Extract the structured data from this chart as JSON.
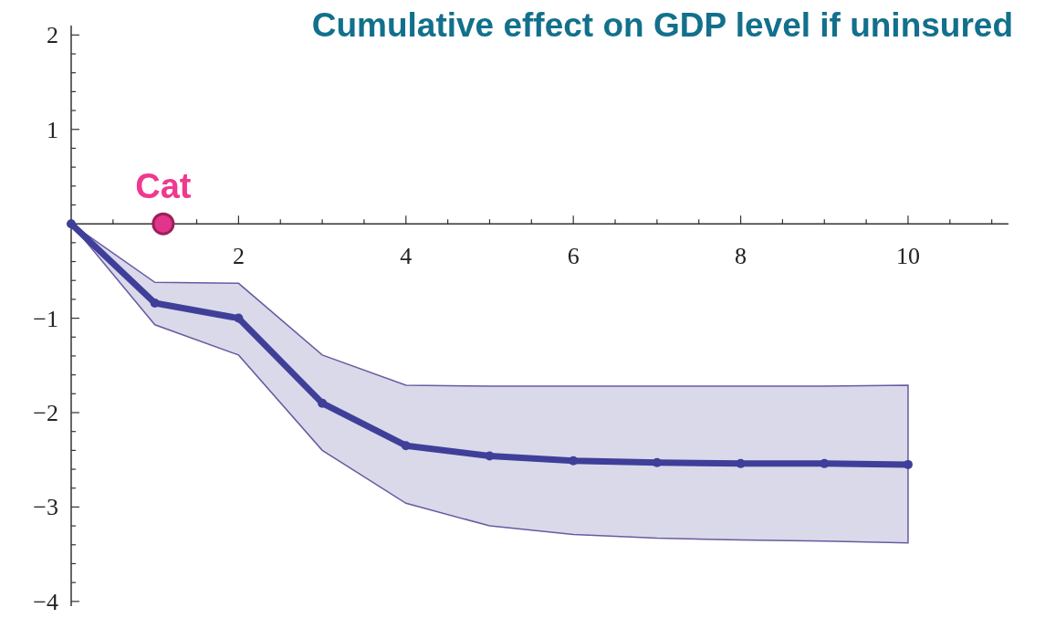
{
  "chart_data": {
    "type": "line",
    "title": "Cumulative effect on GDP level if uninsured",
    "xlim": [
      0,
      11.2
    ],
    "ylim": [
      -4.05,
      2.1
    ],
    "xticks": [
      {
        "value": 0,
        "label": null
      },
      {
        "value": 0.5,
        "label": null
      },
      {
        "value": 1,
        "label": null
      },
      {
        "value": 1.5,
        "label": null
      },
      {
        "value": 2,
        "label": "2"
      },
      {
        "value": 2.5,
        "label": null
      },
      {
        "value": 3,
        "label": null
      },
      {
        "value": 3.5,
        "label": null
      },
      {
        "value": 4,
        "label": "4"
      },
      {
        "value": 4.5,
        "label": null
      },
      {
        "value": 5,
        "label": null
      },
      {
        "value": 5.5,
        "label": null
      },
      {
        "value": 6,
        "label": "6"
      },
      {
        "value": 6.5,
        "label": null
      },
      {
        "value": 7,
        "label": null
      },
      {
        "value": 7.5,
        "label": null
      },
      {
        "value": 8,
        "label": "8"
      },
      {
        "value": 8.5,
        "label": null
      },
      {
        "value": 9,
        "label": null
      },
      {
        "value": 9.5,
        "label": null
      },
      {
        "value": 10,
        "label": "10"
      },
      {
        "value": 10.5,
        "label": null
      },
      {
        "value": 11,
        "label": null
      }
    ],
    "yticks": [
      {
        "value": -4,
        "label": "−4"
      },
      {
        "value": -3.8,
        "label": null
      },
      {
        "value": -3.6,
        "label": null
      },
      {
        "value": -3.4,
        "label": null
      },
      {
        "value": -3.2,
        "label": null
      },
      {
        "value": -3,
        "label": "−3"
      },
      {
        "value": -2.8,
        "label": null
      },
      {
        "value": -2.6,
        "label": null
      },
      {
        "value": -2.4,
        "label": null
      },
      {
        "value": -2.2,
        "label": null
      },
      {
        "value": -2,
        "label": "−2"
      },
      {
        "value": -1.8,
        "label": null
      },
      {
        "value": -1.6,
        "label": null
      },
      {
        "value": -1.4,
        "label": null
      },
      {
        "value": -1.2,
        "label": null
      },
      {
        "value": -1,
        "label": "−1"
      },
      {
        "value": -0.8,
        "label": null
      },
      {
        "value": -0.6,
        "label": null
      },
      {
        "value": -0.4,
        "label": null
      },
      {
        "value": -0.2,
        "label": null
      },
      {
        "value": 0,
        "label": null
      },
      {
        "value": 0.2,
        "label": null
      },
      {
        "value": 0.4,
        "label": null
      },
      {
        "value": 0.6,
        "label": null
      },
      {
        "value": 0.8,
        "label": null
      },
      {
        "value": 1,
        "label": "1"
      },
      {
        "value": 1.2,
        "label": null
      },
      {
        "value": 1.4,
        "label": null
      },
      {
        "value": 1.6,
        "label": null
      },
      {
        "value": 1.8,
        "label": null
      },
      {
        "value": 2,
        "label": "2"
      }
    ],
    "series": [
      {
        "color": "#3f3f9a",
        "x": [
          0,
          1,
          2,
          3,
          4,
          5,
          6,
          7,
          8,
          9,
          10
        ],
        "values": [
          0,
          -0.84,
          -1.0,
          -1.9,
          -2.35,
          -2.46,
          -2.51,
          -2.53,
          -2.54,
          -2.54,
          -2.55
        ],
        "lower": [
          0,
          -1.07,
          -1.39,
          -2.4,
          -2.96,
          -3.2,
          -3.29,
          -3.33,
          -3.35,
          -3.36,
          -3.38
        ],
        "upper": [
          0,
          -0.62,
          -0.63,
          -1.39,
          -1.71,
          -1.72,
          -1.72,
          -1.72,
          -1.72,
          -1.72,
          -1.71
        ],
        "marker": "circle"
      },
      {
        "type": "scatter",
        "color": "#e0358a",
        "x": [
          1.1
        ],
        "values": [
          0
        ],
        "marker": "circle"
      }
    ],
    "annotations": [
      {
        "text": "Cat",
        "x": 1.1,
        "y": 0
      }
    ]
  }
}
